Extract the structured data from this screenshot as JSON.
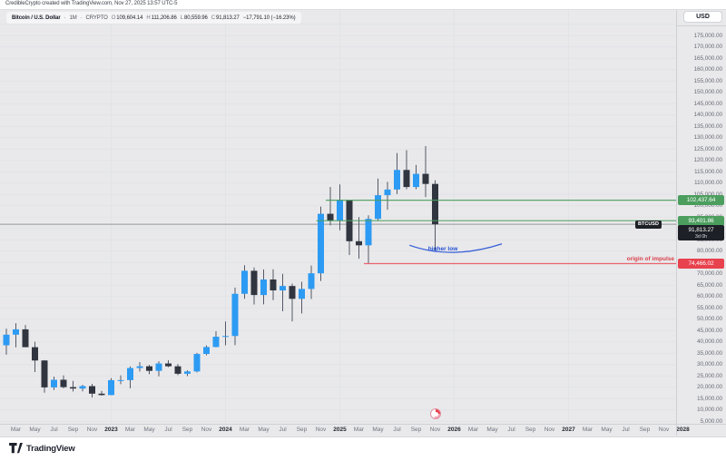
{
  "header": {
    "attribution": "CredibleCrypto created with TradingView.com, Nov 27, 2025 13:57 UTC-5",
    "symbol_title": "Bitcoin / U.S. Dollar",
    "dot": "·",
    "timeframe": "1M",
    "exchange": "CRYPTO",
    "ohlc": {
      "o_label": "O",
      "o_value": "109,604.14",
      "h_label": "H",
      "h_value": "111,206.86",
      "l_label": "L",
      "l_value": "80,559.96",
      "c_label": "C",
      "c_value": "91,813.27",
      "change_value": "−17,791.10 (−16.23%)"
    }
  },
  "axis": {
    "currency_button": "USD",
    "price_ticks": [
      180000,
      175000,
      170000,
      165000,
      160000,
      155000,
      150000,
      145000,
      140000,
      135000,
      130000,
      125000,
      120000,
      115000,
      110000,
      105000,
      100000,
      95000,
      90000,
      85000,
      80000,
      75000,
      70000,
      65000,
      60000,
      55000,
      50000,
      45000,
      40000,
      35000,
      30000,
      25000,
      20000,
      15000,
      10000,
      5000
    ],
    "time_ticks": [
      {
        "i": 2,
        "label": "Mar"
      },
      {
        "i": 4,
        "label": "May"
      },
      {
        "i": 6,
        "label": "Jul"
      },
      {
        "i": 8,
        "label": "Sep"
      },
      {
        "i": 10,
        "label": "Nov"
      },
      {
        "i": 12,
        "label": "2023",
        "year": true
      },
      {
        "i": 14,
        "label": "Mar"
      },
      {
        "i": 16,
        "label": "May"
      },
      {
        "i": 18,
        "label": "Jul"
      },
      {
        "i": 20,
        "label": "Sep"
      },
      {
        "i": 22,
        "label": "Nov"
      },
      {
        "i": 24,
        "label": "2024",
        "year": true
      },
      {
        "i": 26,
        "label": "Mar"
      },
      {
        "i": 28,
        "label": "May"
      },
      {
        "i": 30,
        "label": "Jul"
      },
      {
        "i": 32,
        "label": "Sep"
      },
      {
        "i": 34,
        "label": "Nov"
      },
      {
        "i": 36,
        "label": "2025",
        "year": true
      },
      {
        "i": 38,
        "label": "Mar"
      },
      {
        "i": 40,
        "label": "May"
      },
      {
        "i": 42,
        "label": "Jul"
      },
      {
        "i": 44,
        "label": "Sep"
      },
      {
        "i": 46,
        "label": "Nov"
      },
      {
        "i": 48,
        "label": "2026",
        "year": true
      },
      {
        "i": 50,
        "label": "Mar"
      },
      {
        "i": 52,
        "label": "May"
      },
      {
        "i": 54,
        "label": "Jul"
      },
      {
        "i": 56,
        "label": "Sep"
      },
      {
        "i": 58,
        "label": "Nov"
      },
      {
        "i": 60,
        "label": "2027",
        "year": true
      },
      {
        "i": 62,
        "label": "Mar"
      },
      {
        "i": 64,
        "label": "May"
      },
      {
        "i": 66,
        "label": "Jul"
      },
      {
        "i": 68,
        "label": "Sep"
      },
      {
        "i": 70,
        "label": "Nov"
      },
      {
        "i": 72,
        "label": "2028",
        "year": true
      }
    ]
  },
  "labels": {
    "symbol_tag": "BTCUSD",
    "upper_level": {
      "price": 102437.64,
      "text": "102,437.64"
    },
    "lower_level": {
      "price": 93401.86,
      "text": "93,401.86"
    },
    "impulse_level": {
      "price": 74466.02,
      "text": "74,466.02"
    },
    "last_price": {
      "price": 91813.27,
      "text": "91,813.27",
      "countdown": "3d 0h"
    }
  },
  "annotations": {
    "higher_low": "higher low",
    "origin_of_impulse": "origin of impulse"
  },
  "footer": {
    "logo_text": "TradingView"
  },
  "chart_data": {
    "type": "candlestick",
    "title": "Bitcoin / U.S. Dollar",
    "symbol": "BTCUSD",
    "timeframe": "1M",
    "exchange": "CRYPTO",
    "price_axis": {
      "min": 5000,
      "max": 180000,
      "step": 5000,
      "scale": "linear",
      "side": "right",
      "currency": "USD"
    },
    "time_axis": {
      "first_visible": "2022-01",
      "last_bar": "2025-11",
      "extends_to": "2028-01"
    },
    "grid": true,
    "columns": [
      "month",
      "open",
      "high",
      "low",
      "close"
    ],
    "candles": [
      [
        "2022-01",
        46217,
        47953,
        32950,
        38483
      ],
      [
        "2022-02",
        38483,
        45821,
        34322,
        43160
      ],
      [
        "2022-03",
        43160,
        48190,
        37578,
        45511
      ],
      [
        "2022-04",
        45511,
        47444,
        37702,
        37645
      ],
      [
        "2022-05",
        37645,
        40023,
        26700,
        31784
      ],
      [
        "2022-06",
        31784,
        31957,
        17593,
        19926
      ],
      [
        "2022-07",
        19926,
        24668,
        18781,
        23293
      ],
      [
        "2022-08",
        23293,
        25211,
        19526,
        20041
      ],
      [
        "2022-09",
        20041,
        22799,
        18125,
        19416
      ],
      [
        "2022-10",
        19416,
        21085,
        18190,
        20490
      ],
      [
        "2022-11",
        20490,
        21480,
        15476,
        17163
      ],
      [
        "2022-12",
        17163,
        18387,
        16256,
        16537
      ],
      [
        "2023-01",
        16537,
        23960,
        16490,
        23119
      ],
      [
        "2023-02",
        23119,
        25250,
        21351,
        23135
      ],
      [
        "2023-03",
        23135,
        29184,
        19549,
        28465
      ],
      [
        "2023-04",
        28465,
        31059,
        26942,
        29233
      ],
      [
        "2023-05",
        29233,
        29820,
        25751,
        27210
      ],
      [
        "2023-06",
        27210,
        31431,
        24756,
        30472
      ],
      [
        "2023-07",
        30472,
        31862,
        28855,
        29227
      ],
      [
        "2023-08",
        29227,
        30239,
        25350,
        25932
      ],
      [
        "2023-09",
        25932,
        27483,
        24901,
        26962
      ],
      [
        "2023-10",
        26962,
        35150,
        26523,
        34656
      ],
      [
        "2023-11",
        34656,
        38450,
        34100,
        37718
      ],
      [
        "2023-12",
        37718,
        44700,
        37615,
        42265
      ],
      [
        "2024-01",
        42265,
        48969,
        38501,
        42580
      ],
      [
        "2024-02",
        42580,
        63933,
        38521,
        61179
      ],
      [
        "2024-03",
        61179,
        73794,
        59005,
        71333
      ],
      [
        "2024-04",
        71333,
        72797,
        56483,
        60636
      ],
      [
        "2024-05",
        60636,
        71946,
        56552,
        67491
      ],
      [
        "2024-06",
        67491,
        71997,
        58402,
        62678
      ],
      [
        "2024-07",
        62678,
        69988,
        53485,
        64619
      ],
      [
        "2024-08",
        64619,
        65659,
        49050,
        58969
      ],
      [
        "2024-09",
        58969,
        66480,
        52530,
        63329
      ],
      [
        "2024-10",
        63329,
        73620,
        58895,
        70215
      ],
      [
        "2024-11",
        70215,
        99655,
        66835,
        96449
      ],
      [
        "2024-12",
        96449,
        108268,
        91317,
        93429
      ],
      [
        "2025-01",
        93429,
        109358,
        89164,
        102405
      ],
      [
        "2025-02",
        102405,
        102500,
        78258,
        84349
      ],
      [
        "2025-03",
        84349,
        95000,
        76606,
        82548
      ],
      [
        "2025-04",
        82548,
        95768,
        74508,
        94207
      ],
      [
        "2025-05",
        94207,
        111980,
        93366,
        104638
      ],
      [
        "2025-06",
        104638,
        110530,
        98240,
        107135
      ],
      [
        "2025-07",
        107135,
        123218,
        105116,
        115765
      ],
      [
        "2025-08",
        115765,
        124474,
        107270,
        108237
      ],
      [
        "2025-09",
        108237,
        117988,
        107265,
        114056
      ],
      [
        "2025-10",
        114056,
        126296,
        103852,
        109604
      ],
      [
        "2025-11",
        109604.14,
        111206.86,
        80559.96,
        91813.27
      ]
    ],
    "levels": [
      {
        "type": "horizontal-ray",
        "price": 102437.64,
        "color": "#4c9e5e",
        "from_month": "2024-12"
      },
      {
        "type": "horizontal-ray",
        "price": 93401.86,
        "color": "#4c9e5e",
        "from_month": "2024-11"
      },
      {
        "type": "horizontal-ray",
        "price": 74466.02,
        "color": "#ee5560",
        "from_month": "2025-04",
        "label": "origin of impulse"
      }
    ],
    "last_price_line": 91813.27,
    "arc_annotation": {
      "label": "higher low",
      "color": "#2350d4",
      "points_month_price": [
        [
          43.3,
          82600
        ],
        [
          47.7,
          76000
        ],
        [
          53.0,
          83200
        ]
      ]
    },
    "colors": {
      "up": "#2d9bf3",
      "down": "#30353f",
      "wick": "#555966",
      "background": "#e9e9eb",
      "grid": "#e2e3e7",
      "level_green": "#4c9e5e",
      "level_red": "#ee5560",
      "annotation_blue": "#2350d4",
      "label_green_bg": "#4c9e5e",
      "label_red_bg": "#e8424e",
      "label_black_bg": "#1d2026"
    }
  }
}
